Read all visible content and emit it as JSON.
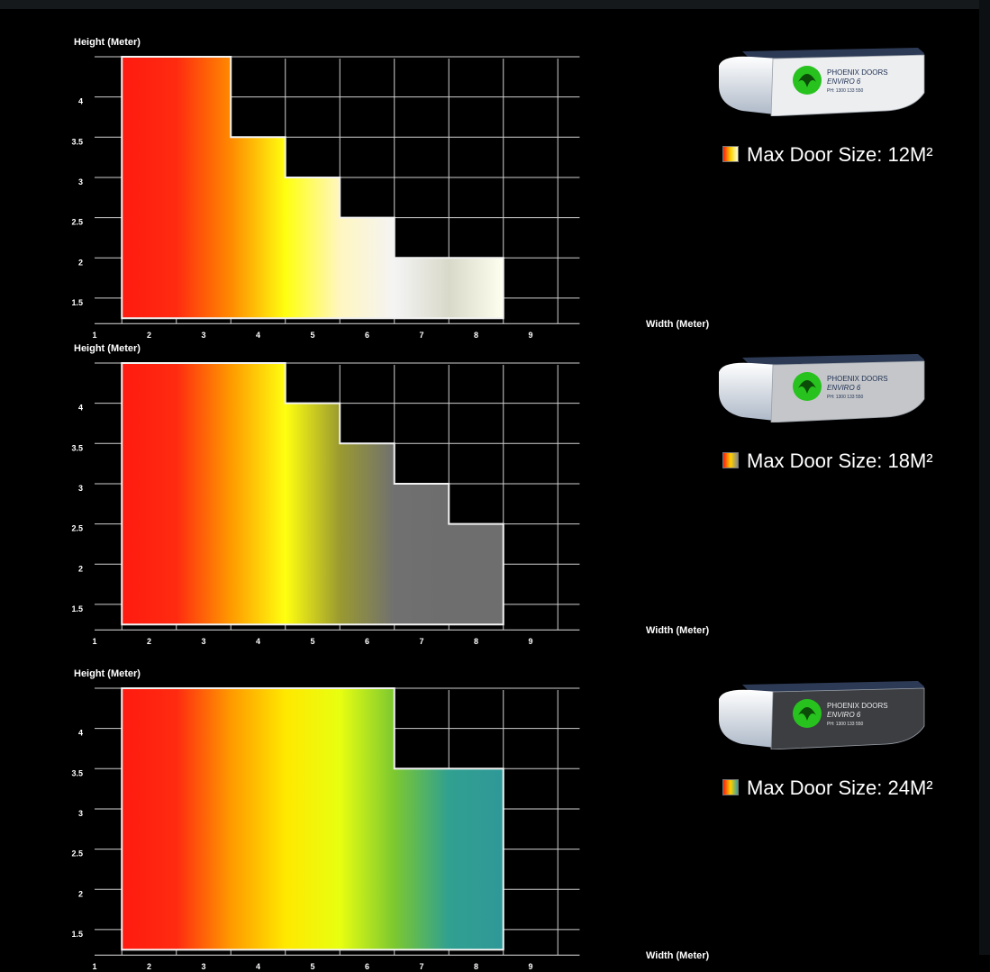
{
  "chart_data": [
    {
      "type": "area",
      "xlabel": "Width (Meter)",
      "ylabel": "Height (Meter)",
      "x_ticks": [
        "1",
        "2",
        "3",
        "4",
        "5",
        "6",
        "7",
        "8",
        "9"
      ],
      "y_ticks": [
        "4",
        "3.5",
        "3",
        "2.5",
        "2",
        "1.5"
      ],
      "xlim": [
        1,
        9.9
      ],
      "ylim": [
        1.25,
        4.5
      ],
      "steps": [
        {
          "width_from": 1.5,
          "width_to": 3.5,
          "max_height": 4.5
        },
        {
          "width_from": 3.5,
          "width_to": 4.5,
          "max_height": 3.5
        },
        {
          "width_from": 4.5,
          "width_to": 5.5,
          "max_height": 3.0
        },
        {
          "width_from": 5.5,
          "width_to": 6.5,
          "max_height": 2.5
        },
        {
          "width_from": 6.5,
          "width_to": 8.5,
          "max_height": 2.0
        }
      ],
      "gradient": [
        "#ff1a10",
        "#ff2b10",
        "#ff8a00",
        "#ffff10",
        "#fff6c0",
        "#f4f4f4",
        "#d9d9ca",
        "#fffff0"
      ],
      "max_label": "Max Door Size: 12M²",
      "swatch_colors": [
        "#ff1a10",
        "#ffd200",
        "#ffffd8"
      ],
      "motor_cover_color": "#eceef0",
      "motor_logo": {
        "line1": "PHOENIX DOORS",
        "line2": "ENVIRO 6",
        "line3": "PH: 1300 133 550"
      }
    },
    {
      "type": "area",
      "xlabel": "Width (Meter)",
      "ylabel": "Height (Meter)",
      "x_ticks": [
        "1",
        "2",
        "3",
        "4",
        "5",
        "6",
        "7",
        "8",
        "9"
      ],
      "y_ticks": [
        "4",
        "3.5",
        "3",
        "2.5",
        "2",
        "1.5"
      ],
      "xlim": [
        1,
        9.9
      ],
      "ylim": [
        1.25,
        4.5
      ],
      "steps": [
        {
          "width_from": 1.5,
          "width_to": 4.5,
          "max_height": 4.5
        },
        {
          "width_from": 4.5,
          "width_to": 5.5,
          "max_height": 4.0
        },
        {
          "width_from": 5.5,
          "width_to": 6.5,
          "max_height": 3.5
        },
        {
          "width_from": 6.5,
          "width_to": 7.5,
          "max_height": 3.0
        },
        {
          "width_from": 7.5,
          "width_to": 8.5,
          "max_height": 2.5
        }
      ],
      "gradient": [
        "#ff1a10",
        "#ff2b10",
        "#ff9a00",
        "#ffff10",
        "#9a9a30",
        "#707070",
        "#6e6e6e",
        "#6e6e6e"
      ],
      "max_label": "Max Door Size: 18M²",
      "swatch_colors": [
        "#ff1a10",
        "#ffd200",
        "#8a8a8a"
      ],
      "motor_cover_color": "#c4c6c9",
      "motor_logo": {
        "line1": "PHOENIX DOORS",
        "line2": "ENVIRO 6",
        "line3": "PH: 1300 133 550"
      }
    },
    {
      "type": "area",
      "xlabel": "Width (Meter)",
      "ylabel": "Height (Meter)",
      "x_ticks": [
        "1",
        "2",
        "3",
        "4",
        "5",
        "6",
        "7",
        "8",
        "9"
      ],
      "y_ticks": [
        "4",
        "3.5",
        "3",
        "2.5",
        "2",
        "1.5"
      ],
      "xlim": [
        1,
        9.9
      ],
      "ylim": [
        1.25,
        4.5
      ],
      "steps": [
        {
          "width_from": 1.5,
          "width_to": 6.5,
          "max_height": 4.5
        },
        {
          "width_from": 6.5,
          "width_to": 8.5,
          "max_height": 3.5
        }
      ],
      "gradient": [
        "#ff1a10",
        "#ff2b10",
        "#ff9a00",
        "#ffe800",
        "#e8ff10",
        "#7cc830",
        "#30a090",
        "#2f9898"
      ],
      "max_label": "Max Door Size: 24M²",
      "swatch_colors": [
        "#ff1a10",
        "#ffd200",
        "#3aa0a0"
      ],
      "motor_cover_color": "#3c3e42",
      "motor_logo": {
        "line1": "PHOENIX DOORS",
        "line2": "ENVIRO 6",
        "line3": "PH: 1300 133 550"
      }
    }
  ]
}
